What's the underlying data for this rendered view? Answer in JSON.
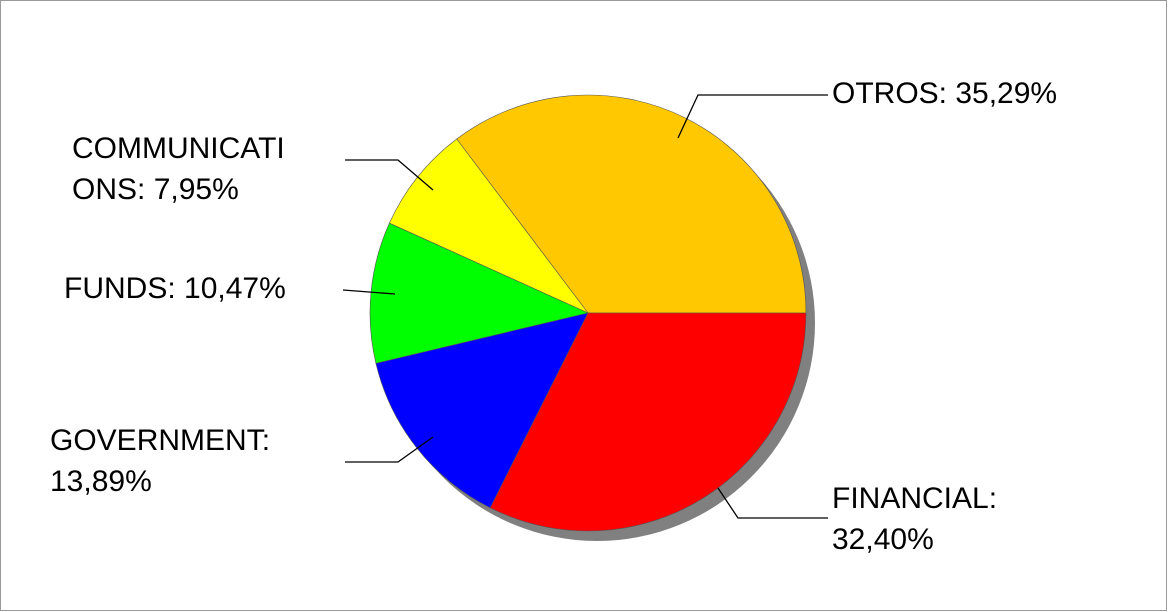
{
  "chart_data": {
    "type": "pie",
    "categories": [
      "OTROS",
      "COMMUNICATIONS",
      "FUNDS",
      "GOVERNMENT",
      "FINANCIAL"
    ],
    "values": [
      35.29,
      7.95,
      10.47,
      13.89,
      32.4
    ],
    "value_labels": [
      "35,29%",
      "7,95%",
      "10,47%",
      "13,89%",
      "32,40%"
    ],
    "label_separator": ": ",
    "colors": [
      "#ffc800",
      "#ffff00",
      "#00ff00",
      "#0000ff",
      "#ff0000"
    ]
  }
}
